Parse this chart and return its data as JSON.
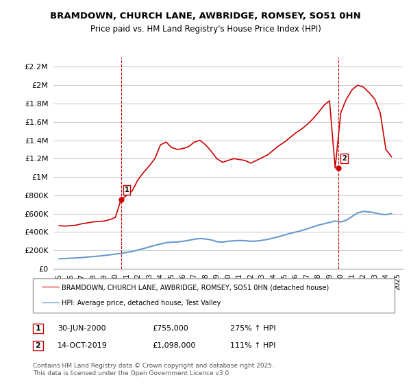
{
  "title": "BRAMDOWN, CHURCH LANE, AWBRIDGE, ROMSEY, SO51 0HN",
  "subtitle": "Price paid vs. HM Land Registry's House Price Index (HPI)",
  "legend_line1": "BRAMDOWN, CHURCH LANE, AWBRIDGE, ROMSEY, SO51 0HN (detached house)",
  "legend_line2": "HPI: Average price, detached house, Test Valley",
  "annotation1_label": "1",
  "annotation1_date": "30-JUN-2000",
  "annotation1_price": "£755,000",
  "annotation1_hpi": "275% ↑ HPI",
  "annotation2_label": "2",
  "annotation2_date": "14-OCT-2019",
  "annotation2_price": "£1,098,000",
  "annotation2_hpi": "111% ↑ HPI",
  "footer": "Contains HM Land Registry data © Crown copyright and database right 2025.\nThis data is licensed under the Open Government Licence v3.0.",
  "red_color": "#cc0000",
  "blue_color": "#6699cc",
  "background_color": "#ffffff",
  "grid_color": "#cccccc",
  "ylim": [
    0,
    2300000
  ],
  "yticks": [
    0,
    200000,
    400000,
    600000,
    800000,
    1000000,
    1200000,
    1400000,
    1600000,
    1800000,
    2000000,
    2200000
  ],
  "ytick_labels": [
    "£0",
    "£200K",
    "£400K",
    "£600K",
    "£800K",
    "£1M",
    "£1.2M",
    "£1.4M",
    "£1.6M",
    "£1.8M",
    "£2M",
    "£2.2M"
  ],
  "xlim": [
    1994.5,
    2025.5
  ],
  "marker1_x": 2000.5,
  "marker1_y": 755000,
  "marker2_x": 2019.79,
  "marker2_y": 1098000,
  "red_x": [
    1995,
    1995.5,
    1996,
    1996.5,
    1997,
    1997.5,
    1998,
    1998.5,
    1999,
    1999.5,
    2000,
    2000.5,
    2001,
    2001.5,
    2002,
    2002.5,
    2003,
    2003.5,
    2004,
    2004.5,
    2005,
    2005.5,
    2006,
    2006.5,
    2007,
    2007.5,
    2008,
    2008.5,
    2009,
    2009.5,
    2010,
    2010.5,
    2011,
    2011.5,
    2012,
    2012.5,
    2013,
    2013.5,
    2014,
    2014.5,
    2015,
    2015.5,
    2016,
    2016.5,
    2017,
    2017.5,
    2018,
    2018.5,
    2019,
    2019.5,
    2020,
    2020.5,
    2021,
    2021.5,
    2022,
    2022.5,
    2023,
    2023.5,
    2024,
    2024.5
  ],
  "red_y": [
    470000,
    465000,
    470000,
    475000,
    490000,
    500000,
    510000,
    515000,
    520000,
    535000,
    560000,
    755000,
    800000,
    850000,
    970000,
    1050000,
    1120000,
    1200000,
    1350000,
    1380000,
    1320000,
    1300000,
    1310000,
    1330000,
    1380000,
    1400000,
    1350000,
    1280000,
    1200000,
    1160000,
    1180000,
    1200000,
    1190000,
    1180000,
    1150000,
    1180000,
    1210000,
    1240000,
    1290000,
    1340000,
    1380000,
    1430000,
    1480000,
    1520000,
    1570000,
    1630000,
    1700000,
    1780000,
    1830000,
    1098000,
    1700000,
    1850000,
    1950000,
    2000000,
    1980000,
    1920000,
    1850000,
    1700000,
    1300000,
    1220000
  ],
  "blue_x": [
    1995,
    1995.5,
    1996,
    1996.5,
    1997,
    1997.5,
    1998,
    1998.5,
    1999,
    1999.5,
    2000,
    2000.5,
    2001,
    2001.5,
    2002,
    2002.5,
    2003,
    2003.5,
    2004,
    2004.5,
    2005,
    2005.5,
    2006,
    2006.5,
    2007,
    2007.5,
    2008,
    2008.5,
    2009,
    2009.5,
    2010,
    2010.5,
    2011,
    2011.5,
    2012,
    2012.5,
    2013,
    2013.5,
    2014,
    2014.5,
    2015,
    2015.5,
    2016,
    2016.5,
    2017,
    2017.5,
    2018,
    2018.5,
    2019,
    2019.5,
    2020,
    2020.5,
    2021,
    2021.5,
    2022,
    2022.5,
    2023,
    2023.5,
    2024,
    2024.5
  ],
  "blue_y": [
    110000,
    112000,
    115000,
    118000,
    122000,
    128000,
    133000,
    138000,
    145000,
    152000,
    160000,
    168000,
    178000,
    190000,
    205000,
    220000,
    238000,
    255000,
    270000,
    285000,
    290000,
    292000,
    300000,
    310000,
    322000,
    330000,
    325000,
    315000,
    295000,
    290000,
    300000,
    305000,
    308000,
    306000,
    300000,
    302000,
    310000,
    320000,
    335000,
    350000,
    368000,
    385000,
    400000,
    415000,
    435000,
    455000,
    475000,
    490000,
    505000,
    520000,
    510000,
    530000,
    570000,
    610000,
    625000,
    620000,
    610000,
    595000,
    590000,
    600000
  ]
}
